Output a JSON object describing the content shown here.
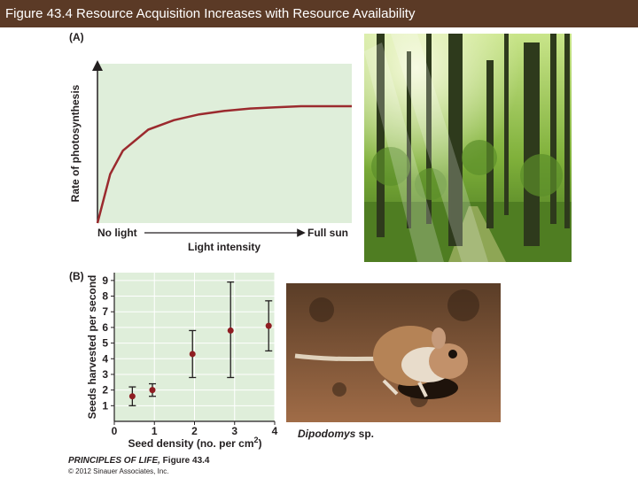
{
  "figure": {
    "title": "Figure 43.4  Resource Acquisition Increases with Resource Availability",
    "footer_book": "PRINCIPLES OF LIFE,",
    "footer_fig": " Figure 43.4",
    "footer_copyright": "© 2012 Sinauer Associates, Inc.",
    "colors": {
      "title_bar": "#5b3a26",
      "plot_bg": "#dfeeda",
      "curve": "#9b2a2e",
      "marker": "#8f1d22"
    }
  },
  "panels": {
    "a_label": "(A)",
    "b_label": "(B)",
    "b_caption_genus": "Dipodomys",
    "b_caption_sp": " sp."
  },
  "photos": {
    "forest": "forest-photo",
    "rat": "kangaroo-rat-photo"
  },
  "chart_data": [
    {
      "type": "line",
      "title": "",
      "ylabel": "Rate of photosynthesis",
      "xlabel": "Light intensity",
      "x_start_label": "No light",
      "x_end_label": "Full sun",
      "curve": "saturating",
      "grid": false,
      "x": [
        0,
        0.05,
        0.1,
        0.2,
        0.3,
        0.4,
        0.5,
        0.6,
        0.7,
        0.8,
        0.9,
        1.0
      ],
      "y": [
        0,
        0.42,
        0.62,
        0.8,
        0.88,
        0.93,
        0.96,
        0.98,
        0.99,
        1.0,
        1.0,
        1.0
      ]
    },
    {
      "type": "scatter",
      "title": "",
      "xlabel": "Seed density (no. per cm",
      "xlabel_sup": "2",
      "xlabel_end": ")",
      "ylabel": "Seeds harvested per second",
      "xlim": [
        0,
        4
      ],
      "ylim": [
        0,
        9.5
      ],
      "xticks": [
        "0",
        "1",
        "2",
        "3",
        "4"
      ],
      "yticks": [
        "1",
        "2",
        "3",
        "4",
        "5",
        "6",
        "7",
        "8",
        "9"
      ],
      "grid": true,
      "points": [
        {
          "x": 0.45,
          "y": 1.6,
          "low": 1.0,
          "high": 2.2
        },
        {
          "x": 0.95,
          "y": 2.0,
          "low": 1.6,
          "high": 2.4
        },
        {
          "x": 1.95,
          "y": 4.3,
          "low": 2.8,
          "high": 5.8
        },
        {
          "x": 2.9,
          "y": 5.8,
          "low": 2.8,
          "high": 8.9
        },
        {
          "x": 3.85,
          "y": 6.1,
          "low": 4.5,
          "high": 7.7
        }
      ]
    }
  ]
}
